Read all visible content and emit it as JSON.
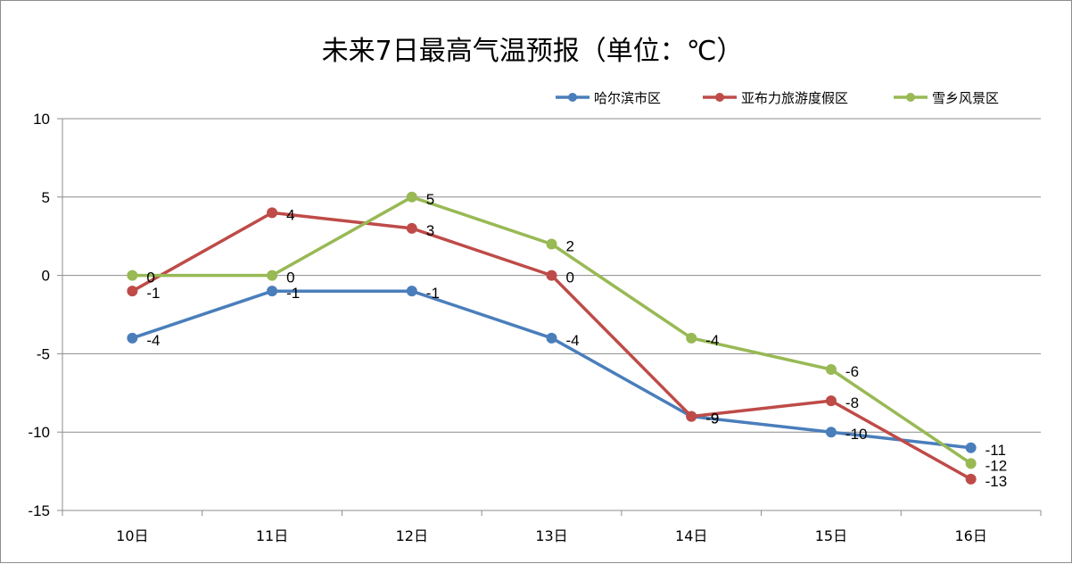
{
  "chart_data": {
    "type": "line",
    "title": "未来7日最高气温预报（单位：℃）",
    "xlabel": "",
    "ylabel": "",
    "categories": [
      "10日",
      "11日",
      "12日",
      "13日",
      "14日",
      "15日",
      "16日"
    ],
    "ylim": [
      -15,
      10
    ],
    "yticks": [
      "10",
      "5",
      "0",
      "-5",
      "-10",
      "-15"
    ],
    "ytick_values": [
      10,
      5,
      0,
      -5,
      -10,
      -15
    ],
    "grid": true,
    "legend_position": "top-right",
    "series": [
      {
        "name": "哈尔滨市区",
        "color": "#4a7ebb",
        "values": [
          -4,
          -1,
          -1,
          -4,
          -9,
          -10,
          -11
        ]
      },
      {
        "name": "亚布力旅游度假区",
        "color": "#be4b48",
        "values": [
          -1,
          4,
          3,
          0,
          -9,
          -8,
          -13
        ]
      },
      {
        "name": "雪乡风景区",
        "color": "#98b954",
        "values": [
          0,
          0,
          5,
          2,
          -4,
          -6,
          -12
        ]
      }
    ]
  }
}
